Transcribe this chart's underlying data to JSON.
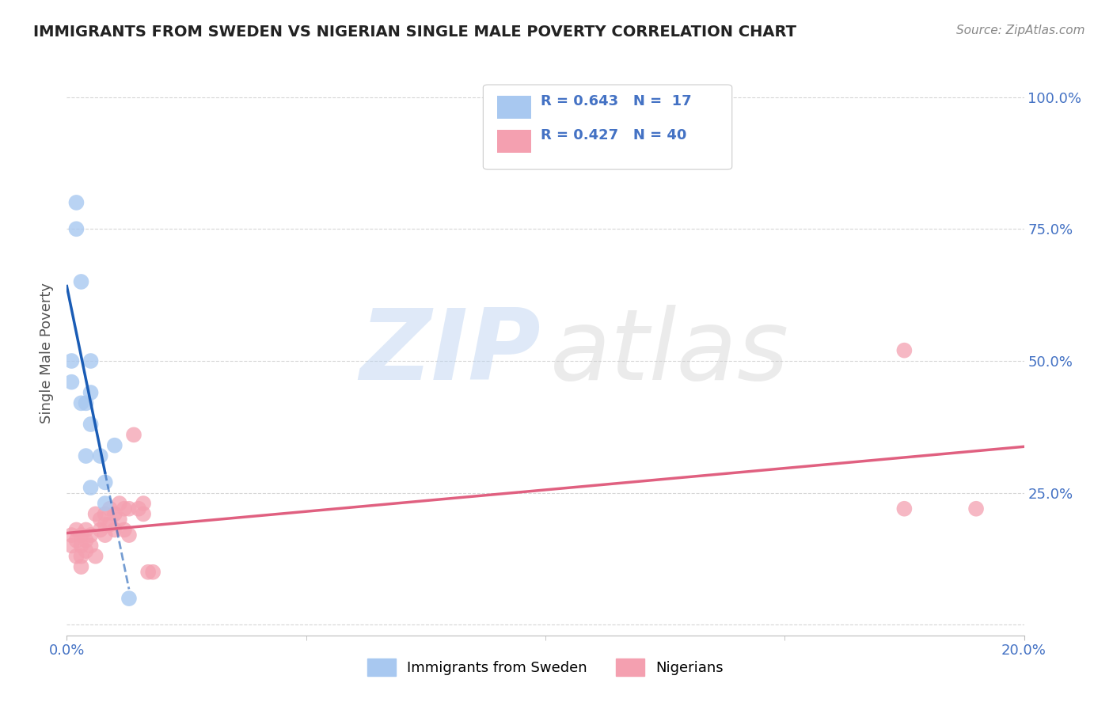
{
  "title": "IMMIGRANTS FROM SWEDEN VS NIGERIAN SINGLE MALE POVERTY CORRELATION CHART",
  "source": "Source: ZipAtlas.com",
  "ylabel": "Single Male Poverty",
  "xlim": [
    0.0,
    0.2
  ],
  "ylim": [
    -0.02,
    1.05
  ],
  "y_tick_vals": [
    0.0,
    0.25,
    0.5,
    0.75,
    1.0
  ],
  "y_tick_labels_right": [
    "",
    "25.0%",
    "50.0%",
    "75.0%",
    "100.0%"
  ],
  "x_tick_vals": [
    0.0,
    0.2
  ],
  "x_tick_labels": [
    "0.0%",
    "20.0%"
  ],
  "legend_r1": "R = 0.643",
  "legend_n1": "N =  17",
  "legend_r2": "R = 0.427",
  "legend_n2": "N = 40",
  "sweden_color": "#a8c8f0",
  "nigeria_color": "#f4a0b0",
  "sweden_line_color": "#1a5cb5",
  "nigeria_line_color": "#e06080",
  "grid_color": "#cccccc",
  "title_color": "#222222",
  "source_color": "#888888",
  "legend_text_color": "#4472c4",
  "axis_label_color": "#555555",
  "sweden_x": [
    0.001,
    0.001,
    0.002,
    0.002,
    0.003,
    0.003,
    0.004,
    0.004,
    0.005,
    0.005,
    0.005,
    0.005,
    0.007,
    0.008,
    0.008,
    0.01,
    0.013
  ],
  "sweden_y": [
    0.46,
    0.5,
    0.8,
    0.75,
    0.65,
    0.42,
    0.42,
    0.32,
    0.5,
    0.44,
    0.38,
    0.26,
    0.32,
    0.27,
    0.23,
    0.34,
    0.05
  ],
  "nigeria_x": [
    0.001,
    0.001,
    0.002,
    0.002,
    0.002,
    0.003,
    0.003,
    0.003,
    0.003,
    0.004,
    0.004,
    0.004,
    0.005,
    0.005,
    0.006,
    0.006,
    0.007,
    0.007,
    0.008,
    0.008,
    0.008,
    0.009,
    0.009,
    0.01,
    0.01,
    0.011,
    0.011,
    0.012,
    0.012,
    0.013,
    0.013,
    0.014,
    0.015,
    0.016,
    0.016,
    0.017,
    0.018,
    0.175,
    0.175,
    0.19
  ],
  "nigeria_y": [
    0.17,
    0.15,
    0.18,
    0.16,
    0.13,
    0.17,
    0.15,
    0.13,
    0.11,
    0.18,
    0.16,
    0.14,
    0.17,
    0.15,
    0.21,
    0.13,
    0.2,
    0.18,
    0.21,
    0.19,
    0.17,
    0.22,
    0.19,
    0.21,
    0.18,
    0.23,
    0.2,
    0.22,
    0.18,
    0.22,
    0.17,
    0.36,
    0.22,
    0.23,
    0.21,
    0.1,
    0.1,
    0.52,
    0.22,
    0.22
  ],
  "watermark_zip_color": "#b8d0f0",
  "watermark_atlas_color": "#c8c8c8"
}
